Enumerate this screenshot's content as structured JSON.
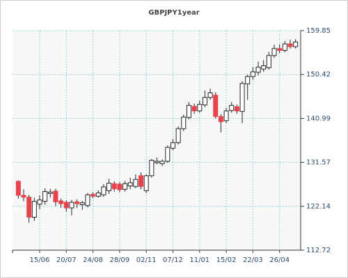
{
  "chart_data": {
    "type": "candlestick",
    "title": "GBPJPY1year",
    "categories": [
      null,
      null,
      null,
      null,
      "15/06",
      null,
      null,
      null,
      null,
      "20/07",
      null,
      null,
      null,
      null,
      "24/08",
      null,
      null,
      null,
      null,
      "28/09",
      null,
      null,
      null,
      null,
      "02/11",
      null,
      null,
      null,
      null,
      "07/12",
      null,
      null,
      null,
      null,
      "11/01",
      null,
      null,
      null,
      null,
      "15/02",
      null,
      null,
      null,
      null,
      "22/03",
      null,
      null,
      null,
      null,
      "26/04",
      null,
      null,
      null
    ],
    "series": [
      {
        "up_color": "#ffffff",
        "down_color": "#e8434a",
        "open": [
          127.5,
          124.5,
          124.1,
          119.8,
          122.6,
          123.2,
          124.9,
          125.4,
          123.3,
          123.0,
          121.8,
          123.1,
          122.5,
          122.3,
          124.7,
          124.3,
          124.6,
          125.5,
          127.0,
          126.9,
          125.8,
          126.5,
          126.4,
          128.7,
          125.5,
          128.7,
          131.5,
          131.3,
          131.8,
          134.6,
          135.8,
          138.8,
          141.2,
          143.6,
          142.6,
          143.9,
          145.5,
          146.0,
          141.4,
          140.5,
          142.7,
          143.5,
          142.5,
          148.4,
          150.0,
          150.9,
          151.6,
          151.9,
          154.5,
          156.0,
          155.6,
          157.0,
          156.4
        ],
        "high": [
          127.7,
          125.8,
          124.6,
          124.0,
          124.5,
          126.0,
          125.9,
          125.9,
          123.8,
          123.4,
          123.5,
          123.6,
          123.3,
          125.0,
          125.1,
          125.6,
          126.9,
          128.0,
          127.5,
          127.3,
          127.6,
          128.3,
          129.0,
          129.4,
          129.0,
          132.3,
          132.6,
          132.2,
          135.2,
          136.6,
          139.3,
          141.8,
          144.5,
          144.2,
          144.8,
          147.0,
          147.4,
          146.6,
          141.9,
          143.3,
          144.5,
          144.0,
          149.0,
          150.4,
          152.0,
          153.2,
          153.5,
          155.3,
          156.8,
          156.9,
          157.6,
          157.9,
          158.0
        ],
        "low": [
          123.8,
          123.2,
          118.6,
          119.0,
          121.5,
          122.5,
          124.0,
          122.2,
          121.8,
          121.0,
          120.2,
          121.8,
          121.4,
          121.9,
          123.9,
          124.0,
          124.2,
          124.8,
          125.3,
          125.2,
          125.3,
          125.8,
          126.0,
          125.8,
          125.0,
          128.3,
          131.2,
          130.8,
          131.5,
          134.2,
          135.4,
          138.3,
          140.8,
          142.0,
          142.2,
          143.4,
          145.0,
          141.0,
          138.0,
          140.0,
          142.2,
          142.0,
          140.0,
          145.0,
          149.3,
          150.2,
          151.0,
          151.5,
          154.0,
          155.0,
          155.2,
          156.0,
          156.0
        ],
        "close": [
          124.5,
          124.1,
          119.8,
          123.2,
          123.5,
          125.3,
          125.2,
          123.1,
          122.7,
          121.8,
          123.0,
          122.7,
          122.9,
          124.6,
          124.3,
          125.0,
          126.3,
          127.1,
          125.9,
          125.7,
          127.0,
          127.2,
          127.9,
          126.4,
          128.7,
          132.0,
          131.8,
          131.8,
          134.8,
          135.8,
          138.8,
          141.3,
          143.8,
          142.6,
          144.0,
          145.5,
          146.5,
          141.4,
          140.3,
          142.6,
          143.8,
          142.6,
          148.5,
          150.0,
          151.0,
          152.0,
          152.3,
          154.5,
          156.0,
          155.6,
          157.0,
          156.4,
          157.4
        ]
      }
    ],
    "ylim": [
      112.72,
      159.85
    ],
    "yticks": [
      159.85,
      150.42,
      140.99,
      131.57,
      122.14,
      112.72
    ],
    "grid": true
  }
}
